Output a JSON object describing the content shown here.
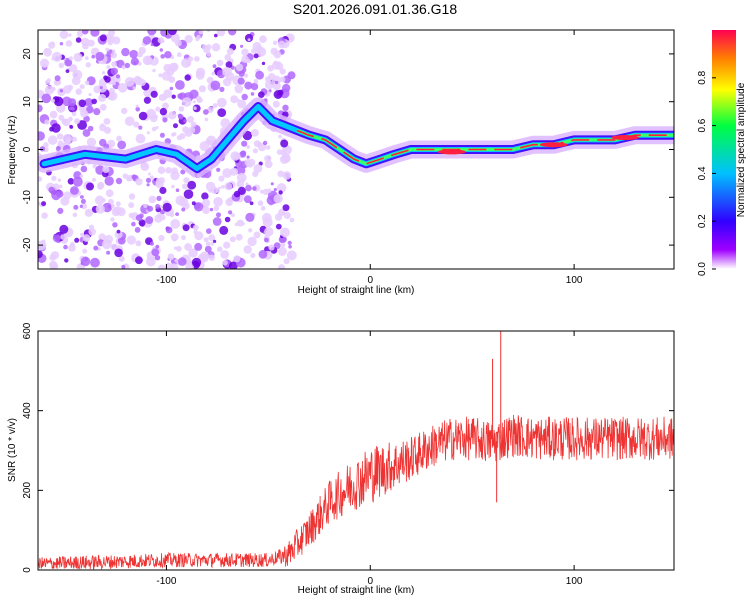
{
  "title": "S201.2026.091.01.36.G18",
  "chart_data": [
    {
      "type": "heatmap",
      "name": "spectrogram",
      "xlabel": "Height of straight line (km)",
      "ylabel": "Frequency (Hz)",
      "xlim": [
        -163,
        149
      ],
      "ylim": [
        -25,
        25
      ],
      "xticks": [
        -100,
        0,
        100
      ],
      "yticks": [
        -20,
        -10,
        0,
        10,
        20
      ],
      "colorbar": {
        "label": "Normalized spectral amplitude",
        "range": [
          0,
          1
        ],
        "ticks": [
          "0.0",
          "0.2",
          "0.4",
          "0.6",
          "0.8"
        ],
        "colors": [
          "#ffffff",
          "#a000ff",
          "#3000ff",
          "#00c0ff",
          "#00ff40",
          "#ffff00",
          "#ff8000",
          "#ff0050"
        ]
      },
      "ridge": {
        "x": [
          -160,
          -140,
          -120,
          -105,
          -95,
          -85,
          -78,
          -70,
          -62,
          -55,
          -48,
          -42,
          -36,
          -30,
          -22,
          -15,
          -8,
          -2,
          5,
          12,
          20,
          30,
          45,
          55,
          60,
          70,
          80,
          90,
          100,
          110,
          120,
          130,
          140,
          149
        ],
        "freq": [
          -3,
          -1,
          -2,
          0,
          -1,
          -4,
          -2,
          2,
          6,
          9,
          6,
          5,
          4,
          3,
          2,
          0,
          -2,
          -3,
          -2,
          -1,
          0,
          0,
          0,
          0,
          0,
          0,
          1,
          1,
          2,
          2,
          2,
          3,
          3,
          3
        ]
      },
      "hotspots": [
        {
          "x": 40,
          "freq": -0.5
        },
        {
          "x": 90,
          "freq": 1
        },
        {
          "x": 125,
          "freq": 2.5
        }
      ]
    },
    {
      "type": "line",
      "name": "snr",
      "xlabel": "Height of straight line (km)",
      "ylabel": "SNR (10 * v/v)",
      "xlim": [
        -163,
        149
      ],
      "ylim": [
        0,
        600
      ],
      "xticks": [
        -100,
        0,
        100
      ],
      "yticks": [
        0,
        200,
        400,
        600
      ],
      "color": "#ee3333",
      "trend": {
        "x": [
          -163,
          -130,
          -100,
          -70,
          -50,
          -40,
          -30,
          -20,
          -10,
          0,
          10,
          20,
          30,
          40,
          50,
          60,
          70,
          80,
          100,
          120,
          149
        ],
        "y": [
          15,
          20,
          25,
          25,
          25,
          40,
          100,
          170,
          210,
          240,
          260,
          280,
          310,
          330,
          330,
          320,
          340,
          330,
          330,
          330,
          330
        ]
      },
      "noise": {
        "x": [
          -163,
          -45,
          -40,
          0,
          20,
          149
        ],
        "amp": [
          18,
          18,
          35,
          75,
          55,
          55
        ]
      },
      "spikes": [
        {
          "x": 60,
          "y": 530
        },
        {
          "x": 62,
          "y": 170
        },
        {
          "x": 64,
          "y": 600
        }
      ]
    }
  ]
}
